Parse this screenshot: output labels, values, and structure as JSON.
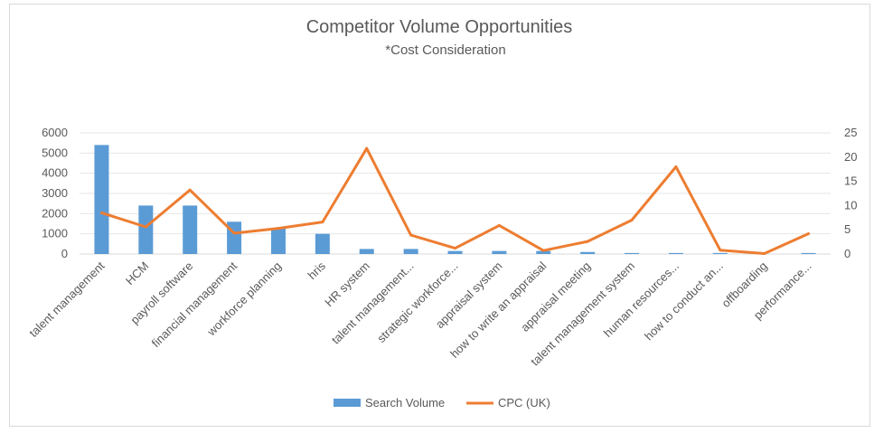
{
  "chart_data": {
    "type": "bar",
    "title": "Competitor Volume Opportunities",
    "subtitle": "*Cost Consideration",
    "categories": [
      "talent management",
      "HCM",
      "payroll software",
      "financial management",
      "workforce planning",
      "hris",
      "HR system",
      "talent management...",
      "strategic workforce...",
      "appraisal system",
      "how to write an appraisal",
      "appraisal meeting",
      "talent management system",
      "human resources...",
      "how to conduct an...",
      "offboarding",
      "performance..."
    ],
    "series": [
      {
        "name": "Search Volume",
        "type": "bar",
        "axis": "left",
        "color": "#5b9bd5",
        "values": [
          5400,
          2400,
          2400,
          1600,
          1300,
          1000,
          250,
          250,
          150,
          150,
          150,
          100,
          50,
          50,
          50,
          0,
          50
        ]
      },
      {
        "name": "CPC (UK)",
        "type": "line",
        "axis": "right",
        "color": "#ed7d31",
        "values": [
          8.5,
          5.6,
          13.2,
          4.3,
          5.3,
          6.6,
          21.8,
          3.9,
          1.2,
          5.9,
          0.7,
          2.6,
          7.0,
          18.0,
          0.8,
          0.1,
          4.2
        ]
      }
    ],
    "y_left": {
      "min": 0,
      "max": 6000,
      "ticks": [
        0,
        1000,
        2000,
        3000,
        4000,
        5000,
        6000
      ]
    },
    "y_right": {
      "min": 0,
      "max": 25,
      "ticks": [
        0,
        5,
        10,
        15,
        20,
        25
      ]
    },
    "grid": true,
    "legend_position": "bottom"
  }
}
